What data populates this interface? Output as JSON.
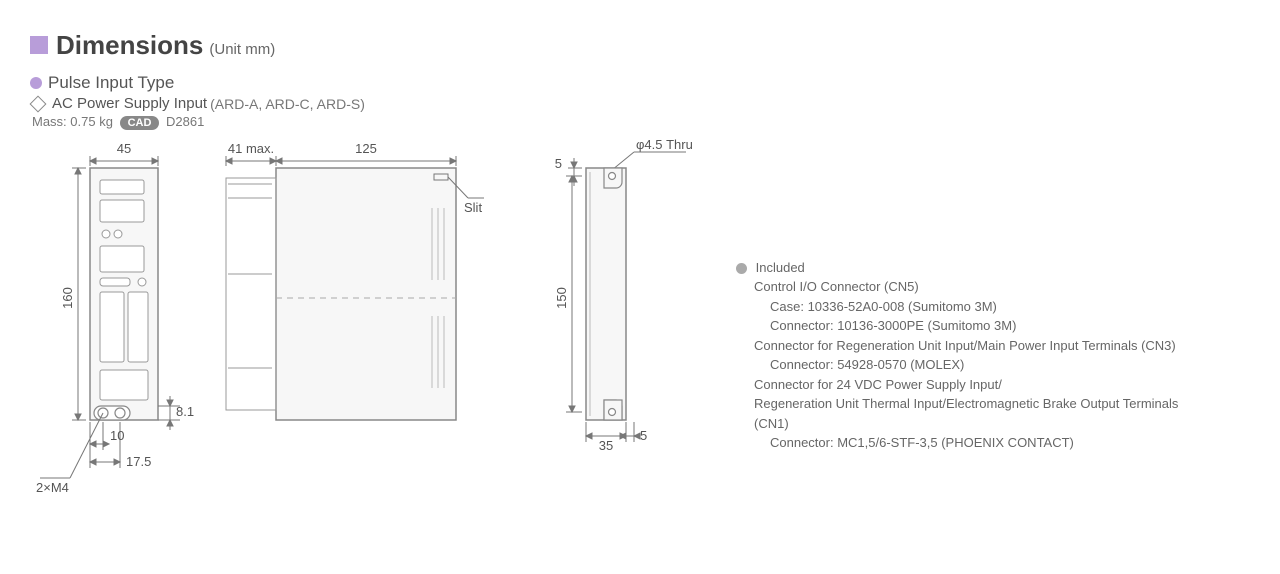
{
  "header": {
    "title": "Dimensions",
    "unit": "(Unit mm)"
  },
  "subtitle": {
    "label": "Pulse Input Type"
  },
  "spec": {
    "label": "AC Power Supply Input",
    "models": "(ARD-A, ARD-C, ARD-S)"
  },
  "mass": {
    "label": "Mass: 0.75 kg",
    "cad": "CAD",
    "code": "D2861"
  },
  "front_view": {
    "width_dim": "45",
    "height_dim": "160",
    "m4_label": "2×M4",
    "dim_10": "10",
    "dim_17_5": "17.5",
    "dim_8_1": "8.1",
    "colors": {
      "outline": "#888888",
      "fill": "#f7f7f7",
      "detail": "#999999",
      "dim_line": "#777777"
    }
  },
  "side_view": {
    "depth_dim": "41 max.",
    "length_dim": "125",
    "slit_label": "Slit",
    "colors": {
      "outline": "#888888",
      "fill": "#f7f7f7",
      "vent": "#bbbbbb",
      "dim_line": "#777777"
    }
  },
  "back_view": {
    "hole_label": "φ4.5 Thru",
    "dim_5_top": "5",
    "height_dim": "150",
    "dim_35": "35",
    "dim_5_right": "5",
    "colors": {
      "outline": "#888888",
      "fill": "#f7f7f7",
      "dim_line": "#777777"
    }
  },
  "included": {
    "title": "Included",
    "lines": [
      {
        "indent": 1,
        "text": "Control I/O Connector (CN5)"
      },
      {
        "indent": 2,
        "text": "Case: 10336-52A0-008 (Sumitomo 3M)"
      },
      {
        "indent": 2,
        "text": "Connector: 10136-3000PE (Sumitomo 3M)"
      },
      {
        "indent": 1,
        "text": "Connector for Regeneration Unit Input/Main Power Input Terminals (CN3)"
      },
      {
        "indent": 2,
        "text": "Connector: 54928-0570 (MOLEX)"
      },
      {
        "indent": 1,
        "text": "Connector for 24 VDC Power Supply Input/"
      },
      {
        "indent": 1,
        "text": "Regeneration Unit Thermal Input/Electromagnetic Brake Output Terminals"
      },
      {
        "indent": 1,
        "text": "(CN1)"
      },
      {
        "indent": 2,
        "text": "Connector: MC1,5/6-STF-3,5 (PHOENIX CONTACT)"
      }
    ]
  }
}
